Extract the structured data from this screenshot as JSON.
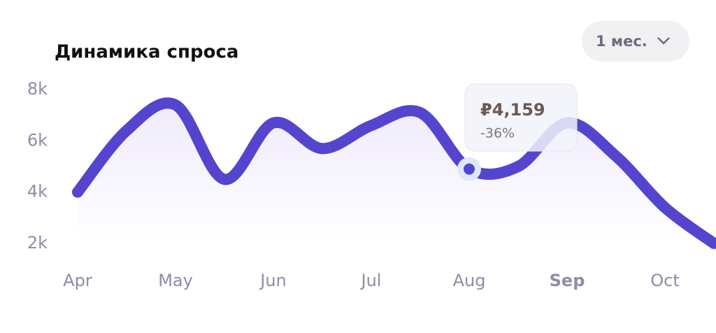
{
  "chart_data": {
    "type": "line",
    "title": "Динамика спроса",
    "period_button": "1 мес.",
    "categories": [
      "Apr",
      null,
      "May",
      null,
      "Jun",
      null,
      "Jul",
      null,
      "Aug",
      null,
      "Sep",
      null,
      "Oct",
      null
    ],
    "series": [
      {
        "color": "#5445cf",
        "values": [
          4000,
          6400,
          7400,
          4500,
          6700,
          5700,
          6600,
          7100,
          4900,
          5000,
          6700,
          5400,
          3400,
          2000
        ]
      }
    ],
    "ylim": [
      2000,
      8000
    ],
    "yticks": [
      {
        "value": 2000,
        "label": "2k"
      },
      {
        "value": 4000,
        "label": "4k"
      },
      {
        "value": 6000,
        "label": "6k"
      },
      {
        "value": 8000,
        "label": "8k"
      }
    ],
    "highlight": {
      "price": "₽4,159",
      "change": "-36%"
    }
  }
}
